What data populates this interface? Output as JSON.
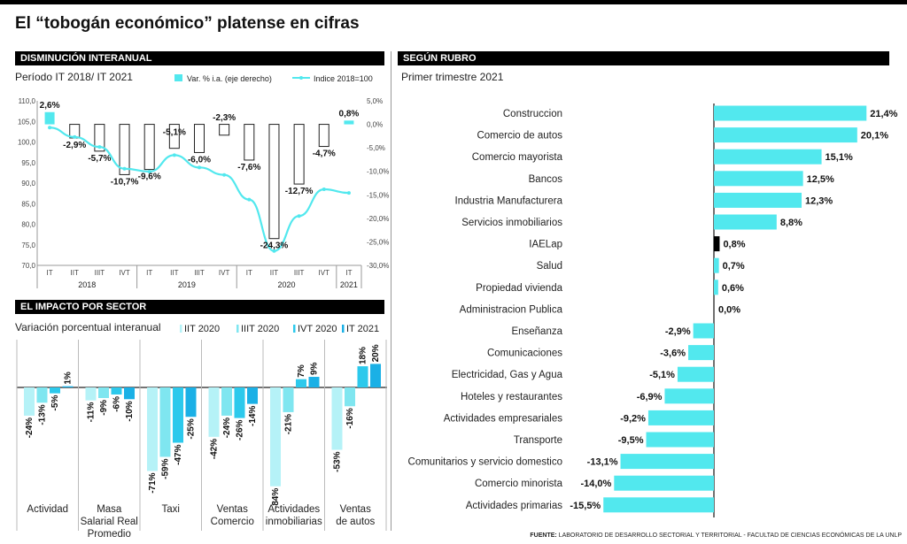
{
  "title": "El “tobogán económico” platense en cifras",
  "source_label": "FUENTE:",
  "source_text": "LABORATORIO DE DESARROLLO SECTORIAL Y TERRITORIAL - FACULTAD DE CIENCIAS ECONÓMICAS DE LA UNLP",
  "colors": {
    "cyan": "#52e8ee",
    "bar_light": "#b5f2f7",
    "bar_mid": "#7fe6f0",
    "bar_blue1": "#2cc9ec",
    "bar_blue2": "#1ab0e6",
    "black": "#000000"
  },
  "chart_data": [
    {
      "type": "bar",
      "header": "DISMINUCIÓN INTERANUAL",
      "subtitle": "Período IT 2018/ IT 2021",
      "legend": [
        "Var. % i.a. (eje derecho)",
        "Indice 2018=100"
      ],
      "quarters": [
        "IT",
        "IIT",
        "IIIT",
        "IVT",
        "IT",
        "IIT",
        "IIIT",
        "IVT",
        "IT",
        "IIT",
        "IIIT",
        "IVT",
        "IT"
      ],
      "years": [
        "2018",
        "2019",
        "2020",
        "2021"
      ],
      "series": [
        {
          "name": "Var. % i.a. (eje derecho)",
          "values": [
            2.6,
            -2.9,
            -5.7,
            -10.7,
            -9.6,
            -5.1,
            -6.0,
            -2.3,
            -7.6,
            -24.3,
            -12.7,
            -4.7,
            0.8
          ]
        },
        {
          "name": "Indice 2018=100",
          "values": [
            103.5,
            101.2,
            98.8,
            93.5,
            92.8,
            96.8,
            93.8,
            92.0,
            86.0,
            73.5,
            82.0,
            88.5,
            87.6
          ]
        }
      ],
      "value_labels": [
        "2,6%",
        "-2,9%",
        "-5,7%",
        "-10,7%",
        "-9,6%",
        "-5,1%",
        "-6,0%",
        "-2,3%",
        "-7,6%",
        "-24,3%",
        "-12,7%",
        "-4,7%",
        "0,8%"
      ],
      "left_ticks": [
        "110,0",
        "105,0",
        "100,0",
        "95,0",
        "90,0",
        "85,0",
        "80,0",
        "75,0",
        "70,0"
      ],
      "right_ticks": [
        "5,0%",
        "0,0%",
        "-5,0%",
        "-10,0%",
        "-15,0%",
        "-20,0%",
        "-25,0%",
        "-30,0%"
      ],
      "ylim_left": [
        70,
        110
      ],
      "ylim_right": [
        -30,
        5
      ]
    },
    {
      "type": "bar",
      "header": "EL IMPACTO POR SECTOR",
      "subtitle": "Variación porcentual interanual",
      "legend": [
        "IIT 2020",
        "IIIT 2020",
        "IVT 2020",
        "IT 2021"
      ],
      "categories": [
        [
          "Actividad"
        ],
        [
          "Masa",
          "Salarial Real",
          "Promedio"
        ],
        [
          "Taxi"
        ],
        [
          "Ventas",
          "Comercio"
        ],
        [
          "Actividades",
          "inmobiliarias"
        ],
        [
          "Ventas",
          "de autos"
        ]
      ],
      "series": [
        {
          "name": "IIT 2020",
          "values": [
            -24,
            -11,
            -71,
            -42,
            -84,
            -53
          ]
        },
        {
          "name": "IIIT 2020",
          "values": [
            -13,
            -9,
            -59,
            -24,
            -21,
            -16
          ]
        },
        {
          "name": "IVT 2020",
          "values": [
            -5,
            -6,
            -47,
            -26,
            7,
            18
          ]
        },
        {
          "name": "IT 2021",
          "values": [
            1,
            -10,
            -25,
            -14,
            9,
            20
          ]
        }
      ],
      "labels": [
        [
          "-24%",
          "-13%",
          "-5%",
          "1%"
        ],
        [
          "-11%",
          "-9%",
          "-6%",
          "-10%"
        ],
        [
          "-71%",
          "-59%",
          "-47%",
          "-25%"
        ],
        [
          "-42%",
          "-24%",
          "-26%",
          "-14%"
        ],
        [
          "-84%",
          "-21%",
          "7%",
          "9%"
        ],
        [
          "-53%",
          "-16%",
          "18%",
          "20%"
        ]
      ]
    },
    {
      "type": "bar",
      "orientation": "horizontal",
      "header": "SEGÚN RUBRO",
      "subtitle": "Primer trimestre 2021",
      "categories": [
        "Construccion",
        "Comercio de autos",
        "Comercio mayorista",
        "Bancos",
        "Industria Manufacturera",
        "Servicios inmobiliarios",
        "IAELap",
        "Salud",
        "Propiedad vivienda",
        "Administracion Publica",
        "Enseñanza",
        "Comunicaciones",
        "Electricidad, Gas y Agua",
        "Hoteles y restaurantes",
        "Actividades empresariales",
        "Transporte",
        "Comunitarios y servicio domestico",
        "Comercio minorista",
        "Actividades primarias"
      ],
      "values": [
        21.4,
        20.1,
        15.1,
        12.5,
        12.3,
        8.8,
        0.8,
        0.7,
        0.6,
        0.0,
        -2.9,
        -3.6,
        -5.1,
        -6.9,
        -9.2,
        -9.5,
        -13.1,
        -14.0,
        -15.5
      ],
      "labels": [
        "21,4%",
        "20,1%",
        "15,1%",
        "12,5%",
        "12,3%",
        "8,8%",
        "0,8%",
        "0,7%",
        "0,6%",
        "0,0%",
        "-2,9%",
        "-3,6%",
        "-5,1%",
        "-6,9%",
        "-9,2%",
        "-9,5%",
        "-13,1%",
        "-14,0%",
        "-15,5%"
      ],
      "highlight": "IAELap"
    }
  ]
}
